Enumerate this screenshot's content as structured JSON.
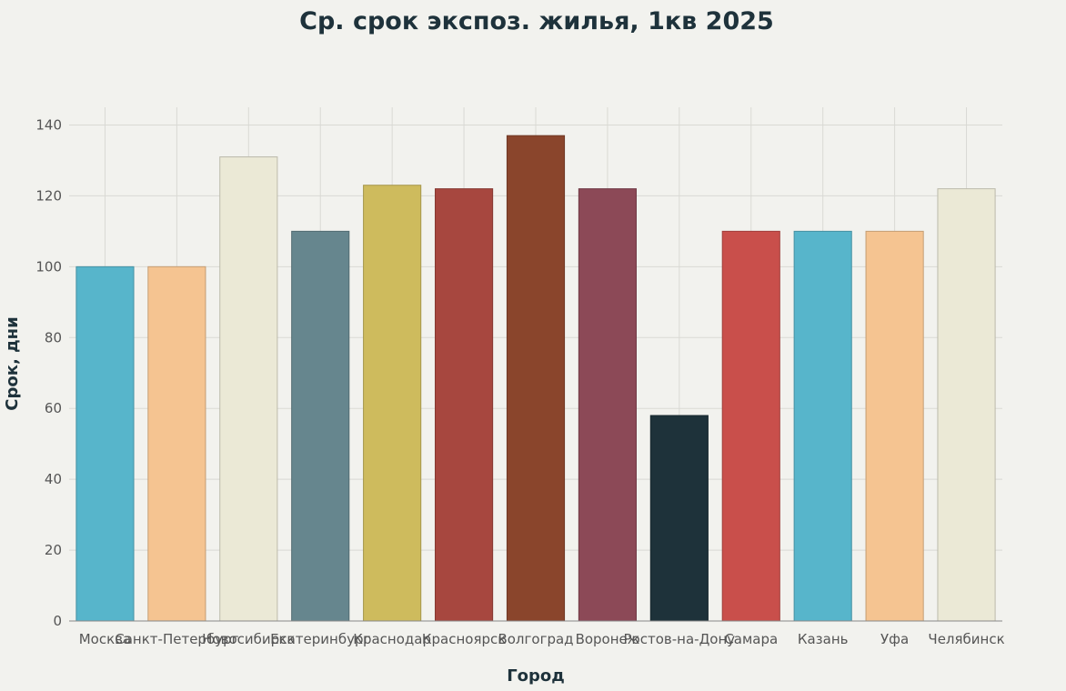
{
  "chart_data": {
    "type": "bar",
    "title": "Ср. срок экспоз. жилья, 1кв 2025",
    "xlabel": "Город",
    "ylabel": "Срок, дни",
    "ylim": [
      0,
      145
    ],
    "yticks": [
      0,
      20,
      40,
      60,
      80,
      100,
      120,
      140
    ],
    "grid": true,
    "categories": [
      "Москва",
      "Санкт-Петербург",
      "Новосибирск",
      "Екатеринбург",
      "Краснодар",
      "Красноярск",
      "Волгоград",
      "Воронеж",
      "Ростов-на-Дону",
      "Самара",
      "Казань",
      "Уфа",
      "Челябинск"
    ],
    "values": [
      100,
      100,
      131,
      110,
      123,
      122,
      137,
      122,
      58,
      110,
      110,
      110,
      122
    ],
    "colors": [
      "#57b5cb",
      "#f5c491",
      "#ebe9d6",
      "#66868e",
      "#cebb5d",
      "#a7473f",
      "#8a452c",
      "#8c4957",
      "#1e323a",
      "#c94f4b",
      "#57b5cb",
      "#f5c491",
      "#ebe9d6"
    ]
  }
}
